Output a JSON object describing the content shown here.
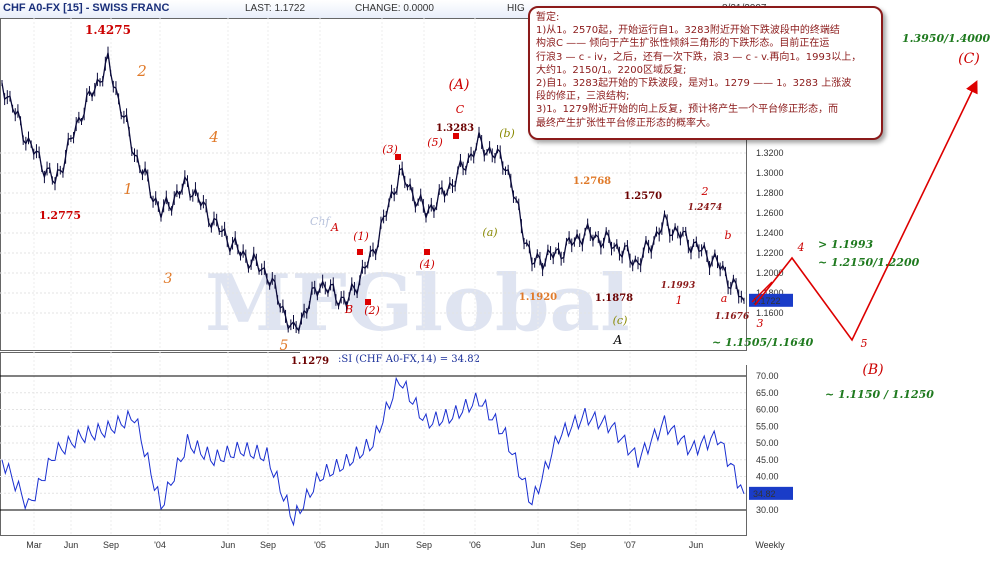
{
  "header": {
    "symbol": "CHF A0-FX [15] - SWISS FRANC",
    "last": "LAST: 1.1722",
    "change": "CHANGE: 0.0000",
    "high": "HIG",
    "date": "8/31/2007"
  },
  "watermark": {
    "small": "Chf",
    "logo": "MFGlobal"
  },
  "note": {
    "lines": [
      "暂定:",
      "1)从1。2570起，开始运行自1。3283附近开始下跌波段中的终端结",
      "构浪C —— 倾向于产生扩张性倾斜三角形的下跌形态。目前正在运",
      "行浪3 — c - iv，之后，还有一次下跌，浪3 — c - v.再向1。1993以上，",
      "大约1。2150/1。2200区域反复;",
      "2)自1。3283起开始的下跌波段，是对1。1279 —— 1。3283 上涨波",
      "段的修正，三浪结构;",
      "3)1。1279附近开始的向上反复，预计将产生一个平台修正形态，而",
      "最终产生扩张性平台修正形态的概率大。"
    ]
  },
  "chart_data": [
    {
      "type": "line",
      "title": "CHF A0-FX [15] - SWISS FRANC",
      "xlabel": "Weekly",
      "ylabel": "",
      "x": [
        "2003-01",
        "2003-03",
        "2003-05",
        "2003-07",
        "2003-09",
        "2003-11",
        "2004-01",
        "2004-03",
        "2004-05",
        "2004-07",
        "2004-09",
        "2004-11",
        "2005-01",
        "2005-03",
        "2005-05",
        "2005-07",
        "2005-09",
        "2005-11",
        "2006-01",
        "2006-03",
        "2006-05",
        "2006-07",
        "2006-09",
        "2006-11",
        "2007-01",
        "2007-03",
        "2007-05",
        "2007-07",
        "2007-08"
      ],
      "series": [
        {
          "name": "CHF A0-FX",
          "values": [
            1.39,
            1.33,
            1.29,
            1.36,
            1.41,
            1.32,
            1.26,
            1.29,
            1.25,
            1.22,
            1.2,
            1.14,
            1.19,
            1.17,
            1.22,
            1.3,
            1.26,
            1.29,
            1.33,
            1.31,
            1.21,
            1.22,
            1.24,
            1.23,
            1.21,
            1.25,
            1.23,
            1.21,
            1.1722
          ]
        }
      ],
      "ylim": [
        1.14,
        1.34
      ],
      "yticks": [
        "1.3200",
        "1.3000",
        "1.2800",
        "1.2600",
        "1.2400",
        "1.2200",
        "1.2000",
        "1.1800",
        "1.1600"
      ],
      "xticks": [
        "Mar",
        "Jun",
        "Sep",
        "'04",
        "Jun",
        "Sep",
        "'05",
        "Jun",
        "Sep",
        "'06",
        "Jun",
        "Sep",
        "'07",
        "Jun"
      ],
      "last_value": "1.1722",
      "grid": true,
      "price_labels": [
        "1.4275",
        "1.2775",
        "1.1279",
        "1.3283",
        "1.2768",
        "1.1920",
        "1.2570",
        "1.1878",
        "1.1993",
        "1.2474",
        "1.1676"
      ],
      "wave_labels": [
        "2",
        "1",
        "4",
        "3",
        "5",
        "A",
        "B",
        "(1)",
        "(2)",
        "(3)",
        "(4)",
        "(5)",
        "C",
        "(A)",
        "(a)",
        "(b)",
        "(c)",
        "A",
        "a",
        "b",
        "1",
        "2",
        "3",
        "4",
        "5",
        "(B)",
        "(C)"
      ],
      "targets": [
        "> 1.1993",
        "~ 1.2150/1.2200",
        "~ 1.1505/1.1640",
        "~ 1.1150 / 1.1250",
        "1.3950/1.4000"
      ]
    },
    {
      "type": "line",
      "title": ":SI (CHF A0-FX,14) = 34.82",
      "x": [
        "2003-01",
        "2003-03",
        "2003-05",
        "2003-07",
        "2003-09",
        "2003-11",
        "2004-01",
        "2004-03",
        "2004-05",
        "2004-07",
        "2004-09",
        "2004-11",
        "2005-01",
        "2005-03",
        "2005-05",
        "2005-07",
        "2005-09",
        "2005-11",
        "2006-01",
        "2006-03",
        "2006-05",
        "2006-07",
        "2006-09",
        "2006-11",
        "2007-01",
        "2007-03",
        "2007-05",
        "2007-07",
        "2007-08"
      ],
      "series": [
        {
          "name": ":SI (CHF A0-FX,14)",
          "values": [
            45,
            31,
            47,
            52,
            54,
            58,
            31,
            50,
            45,
            48,
            46,
            27,
            40,
            44,
            50,
            69,
            56,
            58,
            63,
            52,
            32,
            52,
            58,
            55,
            45,
            56,
            48,
            52,
            34.82
          ]
        }
      ],
      "ylim": [
        25,
        72
      ],
      "yticks": [
        "70.00",
        "65.00",
        "60.00",
        "55.00",
        "50.00",
        "45.00",
        "40.00",
        "35.00",
        "30.00"
      ],
      "last_value": "34.82",
      "reference_lines": [
        70,
        30
      ]
    }
  ]
}
